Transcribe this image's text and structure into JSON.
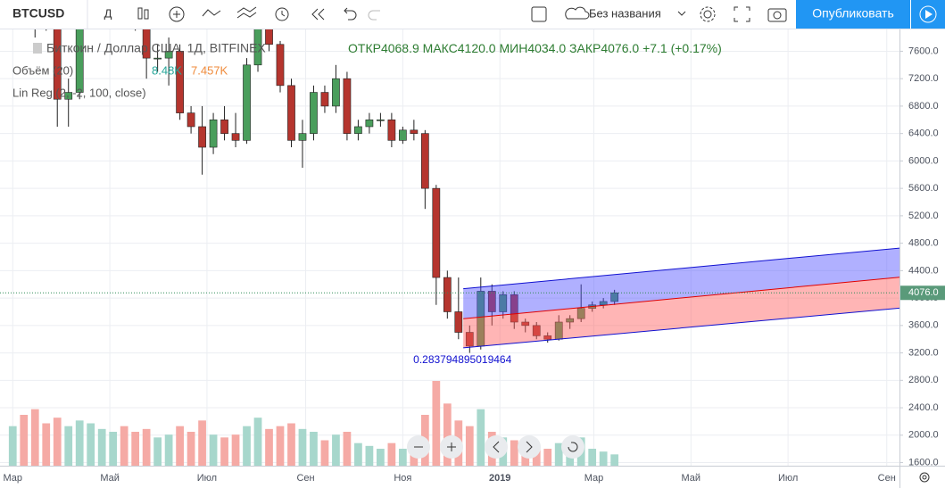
{
  "toolbar": {
    "symbol": "BTCUSD",
    "interval": "Д",
    "layout_name": "Без названия",
    "publish": "Опубликовать"
  },
  "legend": {
    "title": "Биткоин / Доллар США, 1Д, BITFINEX",
    "ohlc": [
      {
        "label": "ОТКР",
        "value": "4068.9"
      },
      {
        "label": "МАКС",
        "value": "4120.0"
      },
      {
        "label": "МИН",
        "value": "4034.0"
      },
      {
        "label": "ЗАКР",
        "value": "4076.0"
      }
    ],
    "change": "+7.1 (+0.17%)",
    "volume_name": "Объём (20)",
    "volume_value": "8.48K",
    "volume_ma": "7.457K",
    "linreg_name": "Lin Reg (2, -2, 100, close)"
  },
  "chart_data": {
    "type": "candlestick",
    "x": [
      0,
      7,
      14,
      21,
      28,
      35,
      42,
      49,
      56,
      63,
      70,
      77,
      84,
      91,
      98,
      105,
      112,
      119,
      126,
      133,
      140,
      147,
      154,
      161,
      168,
      175,
      182,
      189,
      196,
      203,
      210,
      217,
      224,
      231,
      238,
      245,
      252,
      259,
      266,
      273,
      280,
      287,
      294,
      301,
      308,
      315,
      322,
      329,
      336,
      343,
      350,
      357,
      364,
      371,
      378
    ],
    "open": [
      10900,
      11000,
      9200,
      8600,
      8100,
      6900,
      7000,
      8100,
      8900,
      9300,
      9600,
      8500,
      8200,
      7500,
      7500,
      7600,
      6700,
      6500,
      6200,
      6600,
      6400,
      6300,
      7400,
      8200,
      7700,
      7100,
      6300,
      6400,
      7000,
      6800,
      7200,
      6400,
      6500,
      6600,
      6600,
      6300,
      6450,
      6400,
      5600,
      4300,
      3800,
      3500,
      3300,
      4100,
      3800,
      4050,
      3650,
      3600,
      3450,
      3400,
      3650,
      3700,
      3850,
      3900,
      3950
    ],
    "high": [
      11200,
      11500,
      9400,
      9000,
      8200,
      7200,
      8300,
      9000,
      9700,
      9900,
      9700,
      8700,
      8300,
      7700,
      7800,
      7700,
      6800,
      6800,
      6700,
      6800,
      6700,
      7500,
      8300,
      8400,
      7750,
      7200,
      6600,
      7100,
      7100,
      7400,
      7300,
      6600,
      6700,
      6700,
      6700,
      6500,
      6600,
      6450,
      5650,
      4400,
      4300,
      3600,
      4300,
      4200,
      4100,
      4100,
      3700,
      3650,
      3500,
      3750,
      3750,
      4200,
      3950,
      4000,
      4120
    ],
    "low": [
      10400,
      9000,
      7800,
      7900,
      6500,
      6500,
      6900,
      8000,
      8700,
      9200,
      8300,
      7900,
      7200,
      7300,
      7100,
      6600,
      6400,
      5800,
      6100,
      6300,
      6200,
      6250,
      7300,
      7600,
      7000,
      6200,
      5900,
      6300,
      6700,
      6700,
      6300,
      6300,
      6400,
      6500,
      6200,
      6250,
      6300,
      5300,
      3900,
      3700,
      3400,
      3200,
      3250,
      3600,
      3700,
      3550,
      3500,
      3400,
      3350,
      3380,
      3550,
      3650,
      3800,
      3850,
      3900
    ],
    "close": [
      11000,
      9200,
      8600,
      8100,
      6900,
      7000,
      8100,
      8900,
      9300,
      9600,
      8500,
      8200,
      7500,
      7500,
      7600,
      6700,
      6500,
      6200,
      6600,
      6400,
      6300,
      7400,
      8200,
      7700,
      7100,
      6300,
      6400,
      7000,
      6800,
      7200,
      6400,
      6500,
      6600,
      6600,
      6300,
      6450,
      6400,
      5600,
      4300,
      3800,
      3500,
      3300,
      4100,
      3800,
      4050,
      3650,
      3600,
      3450,
      3400,
      3650,
      3700,
      3850,
      3900,
      3950,
      4076
    ],
    "volume": [
      14,
      18,
      20,
      15,
      17,
      14,
      16,
      15,
      13,
      12,
      14,
      12,
      13,
      10,
      11,
      14,
      12,
      16,
      11,
      10,
      11,
      14,
      17,
      13,
      14,
      15,
      13,
      12,
      9,
      11,
      12,
      8,
      7,
      6,
      8,
      6,
      7,
      18,
      30,
      22,
      16,
      14,
      20,
      12,
      10,
      9,
      7,
      6,
      6,
      8,
      7,
      10,
      6,
      5,
      4
    ],
    "up_color": "#4a9e5c",
    "down_color": "#b5352e",
    "up_volume_color": "#a7d7cc",
    "down_volume_color": "#f5aaa5",
    "xlim": [
      -8,
      557
    ],
    "xticks": [
      {
        "value": 0,
        "label": "Мар"
      },
      {
        "value": 61,
        "label": "Май"
      },
      {
        "value": 122,
        "label": "Июл"
      },
      {
        "value": 184,
        "label": "Сен"
      },
      {
        "value": 245,
        "label": "Ноя"
      },
      {
        "value": 306,
        "label": "2019"
      },
      {
        "value": 365,
        "label": "Мар"
      },
      {
        "value": 426,
        "label": "Май"
      },
      {
        "value": 487,
        "label": "Июл"
      },
      {
        "value": 549,
        "label": "Сен"
      }
    ],
    "ylim": [
      1555,
      7918
    ],
    "yticks": [
      {
        "value": 1600,
        "label": "1600.0"
      },
      {
        "value": 2000,
        "label": "2000.0"
      },
      {
        "value": 2400,
        "label": "2400.0"
      },
      {
        "value": 2800,
        "label": "2800.0"
      },
      {
        "value": 3200,
        "label": "3200.0"
      },
      {
        "value": 3600,
        "label": "3600.0"
      },
      {
        "value": 4000,
        "label": "4000.0"
      },
      {
        "value": 4400,
        "label": "4400.0"
      },
      {
        "value": 4800,
        "label": "4800.0"
      },
      {
        "value": 5200,
        "label": "5200.0"
      },
      {
        "value": 5600,
        "label": "5600.0"
      },
      {
        "value": 6000,
        "label": "6000.0"
      },
      {
        "value": 6400,
        "label": "6400.0"
      },
      {
        "value": 6800,
        "label": "6800.0"
      },
      {
        "value": 7200,
        "label": "7200.0"
      },
      {
        "value": 7600,
        "label": "7600.0"
      }
    ],
    "grid": true,
    "last_price": 4076,
    "last_price_label": "4076.0",
    "regression": {
      "x": [
        283,
        557
      ],
      "upper": [
        4137,
        4729
      ],
      "mid": [
        3699,
        4304
      ],
      "lower": [
        3274,
        3853
      ],
      "pearson": "0.283794895019464"
    }
  }
}
